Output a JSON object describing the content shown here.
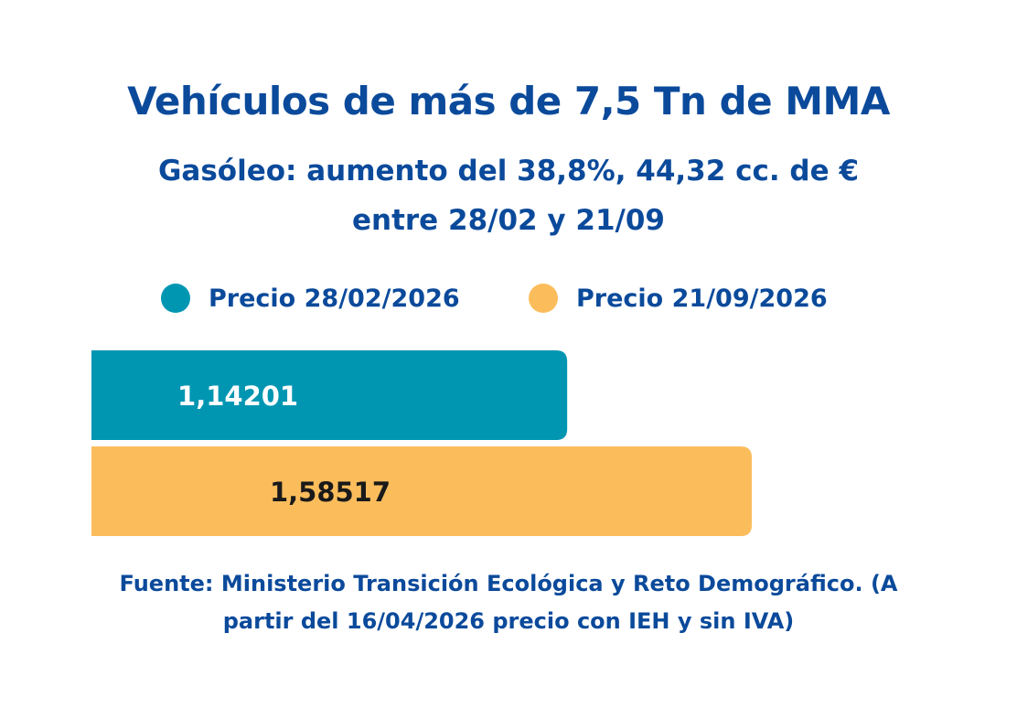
{
  "header": {
    "title": "Vehículos de más de 7,5 Tn de MMA",
    "subtitle_line1": "Gasóleo: aumento del 38,8%, 44,32 cc. de €",
    "subtitle_line2": "entre 28/02 y 21/09"
  },
  "legend": {
    "items": [
      {
        "label": "Precio 28/02/2026",
        "color": "#0096b2"
      },
      {
        "label": "Precio 21/09/2026",
        "color": "#fbbd5c"
      }
    ]
  },
  "chart_data": {
    "type": "bar",
    "orientation": "horizontal",
    "series": [
      {
        "name": "Precio 28/02/2026",
        "value": 1.14201,
        "label": "1,14201",
        "color": "#0096b2",
        "label_color": "#ffffff"
      },
      {
        "name": "Precio 21/09/2026",
        "value": 1.58517,
        "label": "1,58517",
        "color": "#fbbd5c",
        "label_color": "#1a1a1a"
      }
    ],
    "xlim": [
      0,
      1.58517
    ],
    "grid": false,
    "legend_position": "top"
  },
  "footer": {
    "source_line1": "Fuente: Ministerio Transición Ecológica y Reto Demográfico. (A",
    "source_line2": "partir del 16/04/2026 precio con IEH y sin IVA)"
  }
}
